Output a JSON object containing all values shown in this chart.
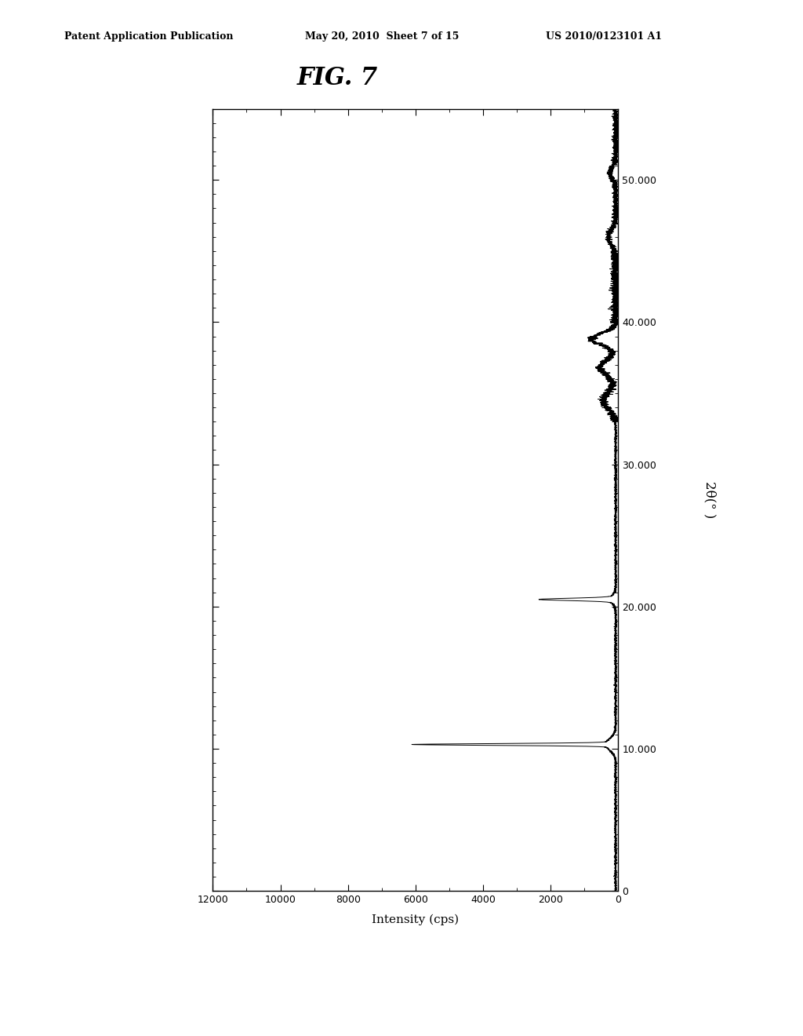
{
  "title": "FIG. 7",
  "xlabel": "Intensity (cps)",
  "ylabel": "2θ(° )",
  "xlim": [
    12000,
    0
  ],
  "ylim": [
    0,
    55
  ],
  "xticks": [
    12000,
    10000,
    8000,
    6000,
    4000,
    2000,
    0
  ],
  "yticks": [
    0,
    10.0,
    20.0,
    30.0,
    40.0,
    50.0
  ],
  "ytick_labels": [
    "0",
    "10.000",
    "20.000",
    "30.000",
    "40.000",
    "50.000"
  ],
  "background_color": "#ffffff",
  "line_color": "#000000",
  "header_left": "Patent Application Publication",
  "header_mid": "May 20, 2010  Sheet 7 of 15",
  "header_right": "US 2010/0123101 A1",
  "peak1_theta": 10.3,
  "peak1_intensity": 5800,
  "peak2_theta": 20.5,
  "peak2_intensity": 2200,
  "peak3_theta": 34.5,
  "peak3_intensity": 450,
  "peak4_theta": 36.8,
  "peak4_intensity": 550,
  "peak5_theta": 38.8,
  "peak5_intensity": 800,
  "peak6_theta": 46.0,
  "peak6_intensity": 300,
  "peak7_theta": 50.5,
  "peak7_intensity": 250,
  "baseline_intensity": 80,
  "noise_std": 15
}
